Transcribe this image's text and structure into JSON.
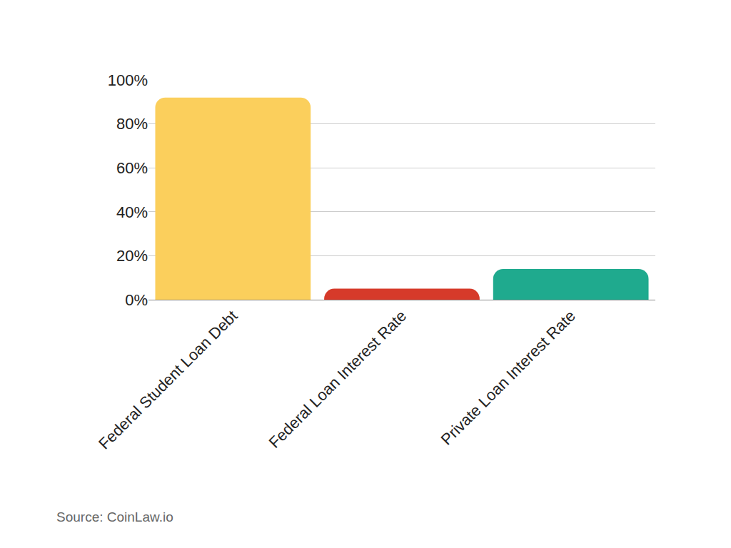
{
  "chart_data": {
    "type": "bar",
    "categories": [
      "Federal Student Loan Debt",
      "Federal Loan Interest Rate",
      "Private Loan Interest Rate"
    ],
    "values": [
      92,
      5,
      14
    ],
    "colors": [
      "#fbcf5c",
      "#d63a2a",
      "#1faa8e"
    ],
    "ylim": [
      0,
      100
    ],
    "yticks": [
      {
        "value": 0,
        "label": "0%"
      },
      {
        "value": 20,
        "label": "20%"
      },
      {
        "value": 40,
        "label": "40%"
      },
      {
        "value": 60,
        "label": "60%"
      },
      {
        "value": 80,
        "label": "80%"
      },
      {
        "value": 100,
        "label": "100%"
      }
    ],
    "grid": true,
    "annotations": [
      "Source: CoinLaw.io"
    ]
  }
}
